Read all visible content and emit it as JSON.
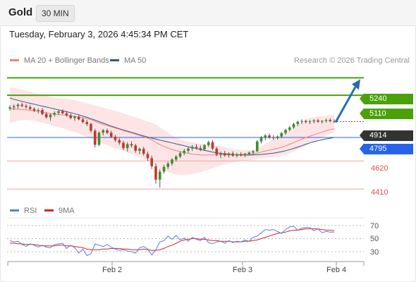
{
  "header": {
    "symbol": "Gold",
    "timeframe": "30 MIN"
  },
  "timestamp": "Tuesday, February 3, 2026 4:45:34 PM CET",
  "research": "Research © 2026 Trading Central",
  "colors": {
    "ma20": "#f08080",
    "ma50": "#2f5597",
    "bollinger_fill": "#fde0e0",
    "resistance": "#4aa10a",
    "support_line": "#f4a0a0",
    "support_text": "#e05252",
    "ma50_box": "#2563eb",
    "last_price_box": "#333333",
    "arrow": "#2b6cb0",
    "candle_up": "#3a8f2a",
    "candle_down": "#c0392b",
    "rsi": "#5b7fd6",
    "rsi_ma": "#e02020"
  },
  "chart_data": [
    {
      "type": "candlestick",
      "legend": [
        {
          "name": "MA 20 + Bollinger Bands",
          "color": "#f08080"
        },
        {
          "name": "MA 50",
          "color": "#2f5597"
        }
      ],
      "x_ticks": [
        "Feb 2",
        "Feb 3",
        "Feb 4"
      ],
      "ylim": [
        4380,
        5300
      ],
      "resistance_levels": [
        5240,
        5110
      ],
      "support_levels": [
        4620,
        4410
      ],
      "ma50_last": 4795,
      "last_price": 4914,
      "price_labels": {
        "r1": "5240",
        "r2": "5110",
        "last": "4914",
        "ma50": "4795",
        "s1": "4620",
        "s2": "4410"
      },
      "ohlc": [
        [
          5010,
          5035,
          4995,
          5020
        ],
        [
          5020,
          5040,
          5000,
          5028
        ],
        [
          5028,
          5050,
          5010,
          5040
        ],
        [
          5040,
          5055,
          5020,
          5030
        ],
        [
          5030,
          5045,
          5010,
          5022
        ],
        [
          5022,
          5038,
          5000,
          5008
        ],
        [
          5008,
          5020,
          4985,
          4995
        ],
        [
          4995,
          5012,
          4975,
          5000
        ],
        [
          5000,
          5015,
          4960,
          4970
        ],
        [
          4970,
          4985,
          4935,
          4945
        ],
        [
          4945,
          4975,
          4920,
          4965
        ],
        [
          4965,
          4990,
          4950,
          4978
        ],
        [
          4978,
          5000,
          4962,
          4990
        ],
        [
          4990,
          5005,
          4970,
          4975
        ],
        [
          4975,
          4992,
          4950,
          4960
        ],
        [
          4960,
          4975,
          4930,
          4940
        ],
        [
          4940,
          4958,
          4920,
          4950
        ],
        [
          4950,
          4962,
          4922,
          4930
        ],
        [
          4930,
          4942,
          4900,
          4910
        ],
        [
          4910,
          4925,
          4880,
          4895
        ],
        [
          4895,
          4905,
          4830,
          4845
        ],
        [
          4845,
          4860,
          4720,
          4740
        ],
        [
          4740,
          4840,
          4730,
          4830
        ],
        [
          4830,
          4858,
          4810,
          4848
        ],
        [
          4848,
          4862,
          4818,
          4830
        ],
        [
          4830,
          4845,
          4790,
          4800
        ],
        [
          4800,
          4815,
          4760,
          4775
        ],
        [
          4775,
          4790,
          4740,
          4755
        ],
        [
          4755,
          4770,
          4700,
          4715
        ],
        [
          4715,
          4760,
          4690,
          4745
        ],
        [
          4745,
          4765,
          4720,
          4735
        ],
        [
          4735,
          4748,
          4680,
          4695
        ],
        [
          4695,
          4720,
          4670,
          4710
        ],
        [
          4710,
          4725,
          4660,
          4672
        ],
        [
          4672,
          4690,
          4620,
          4640
        ],
        [
          4640,
          4660,
          4560,
          4580
        ],
        [
          4580,
          4600,
          4450,
          4480
        ],
        [
          4480,
          4560,
          4420,
          4540
        ],
        [
          4540,
          4590,
          4525,
          4575
        ],
        [
          4575,
          4615,
          4560,
          4600
        ],
        [
          4600,
          4640,
          4585,
          4630
        ],
        [
          4630,
          4665,
          4615,
          4652
        ],
        [
          4652,
          4690,
          4640,
          4678
        ],
        [
          4678,
          4710,
          4662,
          4695
        ],
        [
          4695,
          4722,
          4680,
          4712
        ],
        [
          4712,
          4738,
          4695,
          4725
        ],
        [
          4725,
          4745,
          4705,
          4716
        ],
        [
          4716,
          4735,
          4692,
          4705
        ],
        [
          4705,
          4745,
          4695,
          4738
        ],
        [
          4738,
          4770,
          4725,
          4760
        ],
        [
          4760,
          4775,
          4700,
          4712
        ],
        [
          4712,
          4725,
          4655,
          4668
        ],
        [
          4668,
          4690,
          4640,
          4678
        ],
        [
          4678,
          4695,
          4650,
          4662
        ],
        [
          4662,
          4685,
          4645,
          4675
        ],
        [
          4675,
          4690,
          4650,
          4658
        ],
        [
          4658,
          4680,
          4645,
          4670
        ],
        [
          4670,
          4685,
          4652,
          4660
        ],
        [
          4660,
          4680,
          4648,
          4672
        ],
        [
          4672,
          4690,
          4660,
          4682
        ],
        [
          4682,
          4700,
          4665,
          4692
        ],
        [
          4692,
          4775,
          4685,
          4765
        ],
        [
          4765,
          4805,
          4750,
          4795
        ],
        [
          4795,
          4820,
          4775,
          4810
        ],
        [
          4810,
          4825,
          4785,
          4795
        ],
        [
          4795,
          4812,
          4775,
          4790
        ],
        [
          4790,
          4810,
          4778,
          4802
        ],
        [
          4802,
          4835,
          4790,
          4828
        ],
        [
          4828,
          4860,
          4815,
          4852
        ],
        [
          4852,
          4880,
          4840,
          4870
        ],
        [
          4870,
          4905,
          4860,
          4895
        ],
        [
          4895,
          4920,
          4880,
          4912
        ],
        [
          4912,
          4930,
          4895,
          4918
        ],
        [
          4918,
          4928,
          4900,
          4910
        ],
        [
          4910,
          4925,
          4895,
          4915
        ],
        [
          4915,
          4932,
          4900,
          4922
        ],
        [
          4922,
          4935,
          4905,
          4912
        ],
        [
          4912,
          4925,
          4898,
          4918
        ],
        [
          4918,
          4935,
          4905,
          4925
        ],
        [
          4925,
          4938,
          4908,
          4916
        ],
        [
          4916,
          4930,
          4902,
          4914
        ]
      ],
      "ma20": [
        5010,
        5008,
        5006,
        5004,
        5002,
        4998,
        4994,
        4990,
        4984,
        4978,
        4973,
        4969,
        4966,
        4963,
        4960,
        4956,
        4952,
        4947,
        4942,
        4936,
        4928,
        4915,
        4902,
        4892,
        4883,
        4874,
        4865,
        4856,
        4846,
        4837,
        4828,
        4819,
        4810,
        4800,
        4790,
        4776,
        4758,
        4742,
        4728,
        4716,
        4706,
        4697,
        4689,
        4682,
        4676,
        4671,
        4667,
        4664,
        4663,
        4664,
        4665,
        4665,
        4665,
        4665,
        4665,
        4666,
        4667,
        4668,
        4669,
        4670,
        4672,
        4678,
        4686,
        4694,
        4700,
        4706,
        4713,
        4722,
        4732,
        4744,
        4757,
        4770,
        4782,
        4794,
        4805,
        4815,
        4825,
        4835,
        4845,
        4853,
        4860
      ],
      "bollinger_upper": [
        5170,
        5165,
        5160,
        5152,
        5144,
        5136,
        5128,
        5120,
        5112,
        5104,
        5097,
        5092,
        5088,
        5085,
        5082,
        5078,
        5073,
        5066,
        5058,
        5050,
        5042,
        5034,
        5026,
        5018,
        5010,
        5002,
        4994,
        4985,
        4975,
        4965,
        4955,
        4945,
        4935,
        4925,
        4915,
        4905,
        4890,
        4870,
        4850,
        4830,
        4812,
        4796,
        4783,
        4773,
        4765,
        4758,
        4752,
        4748,
        4745,
        4743,
        4740,
        4736,
        4730,
        4722,
        4714,
        4708,
        4704,
        4702,
        4700,
        4700,
        4702,
        4712,
        4728,
        4746,
        4764,
        4782,
        4800,
        4818,
        4836,
        4855,
        4874,
        4894,
        4912,
        4928,
        4940,
        4948,
        4953,
        4956,
        4958,
        4960,
        4962
      ],
      "bollinger_lower": [
        4900,
        4910,
        4920,
        4925,
        4925,
        4922,
        4918,
        4912,
        4905,
        4897,
        4888,
        4880,
        4872,
        4864,
        4855,
        4845,
        4835,
        4824,
        4812,
        4800,
        4788,
        4775,
        4762,
        4750,
        4738,
        4727,
        4716,
        4705,
        4694,
        4683,
        4672,
        4660,
        4648,
        4636,
        4622,
        4605,
        4585,
        4565,
        4548,
        4535,
        4525,
        4518,
        4515,
        4515,
        4518,
        4522,
        4528,
        4535,
        4545,
        4556,
        4566,
        4576,
        4586,
        4595,
        4603,
        4610,
        4615,
        4619,
        4622,
        4625,
        4630,
        4635,
        4638,
        4641,
        4644,
        4648,
        4652,
        4658,
        4666,
        4676,
        4688,
        4702,
        4717,
        4733,
        4750,
        4766,
        4780,
        4794,
        4808,
        4820,
        4832
      ],
      "ma50": [
        5090,
        5080,
        5072,
        5064,
        5057,
        5050,
        5043,
        5036,
        5029,
        5022,
        5015,
        5008,
        5001,
        4994,
        4987,
        4980,
        4972,
        4964,
        4955,
        4945,
        4935,
        4924,
        4913,
        4902,
        4891,
        4880,
        4870,
        4860,
        4851,
        4842,
        4833,
        4824,
        4815,
        4806,
        4798,
        4790,
        4782,
        4775,
        4768,
        4761,
        4754,
        4747,
        4740,
        4733,
        4726,
        4719,
        4712,
        4705,
        4698,
        4692,
        4686,
        4681,
        4676,
        4672,
        4669,
        4667,
        4665,
        4664,
        4663,
        4663,
        4664,
        4666,
        4668,
        4671,
        4674,
        4678,
        4683,
        4689,
        4696,
        4704,
        4713,
        4723,
        4733,
        4744,
        4754,
        4763,
        4771,
        4778,
        4784,
        4789,
        4795
      ]
    },
    {
      "type": "line",
      "legend": [
        {
          "name": "RSI",
          "color": "#5b7fd6"
        },
        {
          "name": "9MA",
          "color": "#e02020"
        }
      ],
      "levels": [
        70,
        50,
        30
      ],
      "level_labels": [
        "70",
        "50",
        "30"
      ],
      "ylim": [
        20,
        80
      ],
      "series": [
        {
          "name": "RSI",
          "values": [
            47,
            45,
            46,
            41,
            38,
            42,
            40,
            37,
            40,
            37,
            36,
            41,
            42,
            43,
            35,
            40,
            36,
            28,
            34,
            24,
            27,
            42,
            40,
            38,
            41,
            37,
            34,
            32,
            33,
            31,
            30,
            28,
            36,
            38,
            34,
            25,
            33,
            45,
            47,
            54,
            49,
            55,
            48,
            51,
            46,
            52,
            49,
            47,
            52,
            44,
            42,
            45,
            46,
            43,
            47,
            44,
            46,
            45,
            48,
            46,
            52,
            54,
            59,
            64,
            63,
            64,
            61,
            58,
            64,
            68,
            69,
            63,
            66,
            67,
            67,
            62,
            65,
            59,
            61,
            60,
            60
          ]
        },
        {
          "name": "9MA",
          "values": [
            43,
            43,
            42,
            42,
            41,
            41,
            41,
            40,
            39,
            39,
            39,
            39,
            40,
            40,
            39,
            39,
            38,
            37,
            36,
            34,
            33,
            33,
            33,
            34,
            34,
            35,
            35,
            35,
            34,
            34,
            33,
            33,
            33,
            34,
            33,
            32,
            32,
            33,
            35,
            38,
            40,
            43,
            46,
            48,
            49,
            50,
            50,
            49,
            49,
            48,
            47,
            47,
            46,
            46,
            46,
            45,
            45,
            45,
            46,
            46,
            47,
            48,
            50,
            52,
            54,
            56,
            58,
            59,
            60,
            62,
            63,
            63,
            64,
            65,
            65,
            65,
            65,
            64,
            63,
            63,
            62
          ]
        }
      ]
    }
  ]
}
